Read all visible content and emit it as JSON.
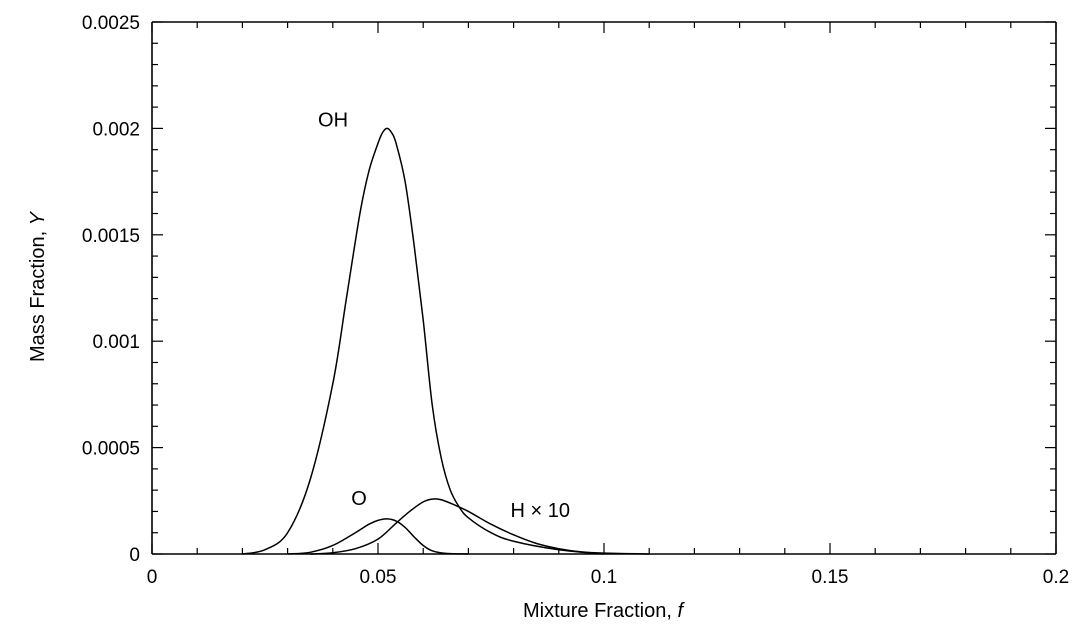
{
  "chart_data": {
    "type": "line",
    "title": "",
    "xlabel": "Mixture Fraction, ",
    "xlabel_italic": "f",
    "ylabel": "Mass Fraction, ",
    "ylabel_italic": "Y",
    "xlim": [
      0,
      0.2
    ],
    "ylim": [
      0,
      0.0025
    ],
    "xticks": [
      0,
      0.05,
      0.1,
      0.15,
      0.2
    ],
    "xtick_labels": [
      "0",
      "0.05",
      "0.1",
      "0.15",
      "0.2"
    ],
    "yticks": [
      0,
      0.0005,
      0.001,
      0.0015,
      0.002,
      0.0025
    ],
    "ytick_labels": [
      "0",
      "0.0005",
      "0.001",
      "0.0015",
      "0.002",
      "0.0025"
    ],
    "grid": false,
    "legend": "none",
    "series": [
      {
        "name": "OH",
        "x": [
          0.02,
          0.025,
          0.03,
          0.035,
          0.04,
          0.043,
          0.046,
          0.048,
          0.05,
          0.051,
          0.052,
          0.053,
          0.054,
          0.056,
          0.058,
          0.06,
          0.062,
          0.064,
          0.066,
          0.068,
          0.07,
          0.075,
          0.08,
          0.09,
          0.1
        ],
        "y": [
          0.0,
          2e-05,
          0.0001,
          0.00035,
          0.0008,
          0.0012,
          0.0016,
          0.0018,
          0.00193,
          0.00198,
          0.002,
          0.00198,
          0.00193,
          0.00175,
          0.00145,
          0.0011,
          0.0007,
          0.00045,
          0.0003,
          0.00022,
          0.00017,
          0.0001,
          6e-05,
          2e-05,
          0.0
        ]
      },
      {
        "name": "O",
        "x": [
          0.03,
          0.035,
          0.04,
          0.045,
          0.048,
          0.05,
          0.052,
          0.054,
          0.056,
          0.058,
          0.06,
          0.062,
          0.065,
          0.07
        ],
        "y": [
          0.0,
          8e-06,
          4e-05,
          0.0001,
          0.00014,
          0.000158,
          0.000165,
          0.000155,
          0.000125,
          8e-05,
          4e-05,
          1.5e-05,
          3e-06,
          0.0
        ]
      },
      {
        "name": "H × 10",
        "x": [
          0.035,
          0.04,
          0.045,
          0.05,
          0.054,
          0.057,
          0.06,
          0.062,
          0.064,
          0.067,
          0.07,
          0.075,
          0.08,
          0.085,
          0.09,
          0.095,
          0.1,
          0.11
        ],
        "y": [
          0.0,
          6e-06,
          2.5e-05,
          7e-05,
          0.000145,
          0.0002,
          0.000245,
          0.000258,
          0.000255,
          0.00023,
          0.0002,
          0.00014,
          9e-05,
          5e-05,
          2.5e-05,
          1e-05,
          4e-06,
          0.0
        ]
      }
    ]
  }
}
